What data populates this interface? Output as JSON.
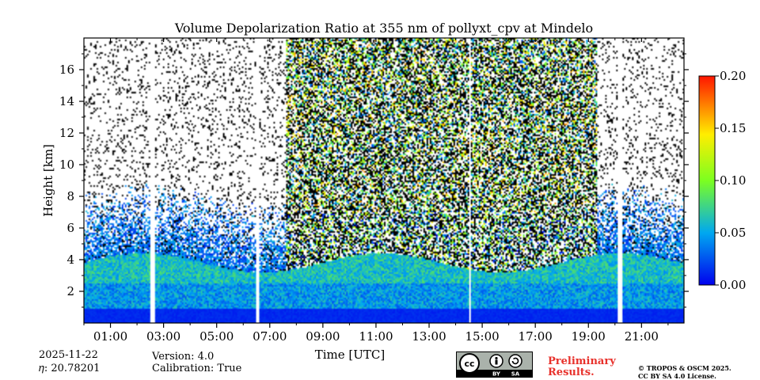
{
  "chart_data": {
    "type": "heatmap",
    "title": "Volume Depolarization Ratio at 355 nm of pollyxt_cpv at Mindelo",
    "xlabel": "Time [UTC]",
    "ylabel": "Height [km]",
    "xlim_hours": [
      0.0,
      22.6
    ],
    "ylim_km": [
      0.0,
      18.0
    ],
    "x_ticks": [
      {
        "label": "01:00",
        "value": 1
      },
      {
        "label": "03:00",
        "value": 3
      },
      {
        "label": "05:00",
        "value": 5
      },
      {
        "label": "07:00",
        "value": 7
      },
      {
        "label": "09:00",
        "value": 9
      },
      {
        "label": "11:00",
        "value": 11
      },
      {
        "label": "13:00",
        "value": 13
      },
      {
        "label": "15:00",
        "value": 15
      },
      {
        "label": "17:00",
        "value": 17
      },
      {
        "label": "19:00",
        "value": 19
      },
      {
        "label": "21:00",
        "value": 21
      }
    ],
    "y_ticks": [
      {
        "label": "2",
        "value": 2
      },
      {
        "label": "4",
        "value": 4
      },
      {
        "label": "6",
        "value": 6
      },
      {
        "label": "8",
        "value": 8
      },
      {
        "label": "10",
        "value": 10
      },
      {
        "label": "12",
        "value": 12
      },
      {
        "label": "14",
        "value": 14
      },
      {
        "label": "16",
        "value": 16
      }
    ],
    "colorbar": {
      "range": [
        0.0,
        0.2
      ],
      "ticks": [
        "0.00",
        "0.05",
        "0.10",
        "0.15",
        "0.20"
      ]
    },
    "features": {
      "boundary_layer_top_km": 3.8,
      "noisy_period_hours": [
        7.6,
        19.3
      ],
      "no_data_gaps_hours": [
        [
          2.5,
          2.7
        ],
        [
          6.5,
          6.6
        ],
        [
          14.5,
          14.55
        ],
        [
          20.1,
          20.3
        ]
      ]
    }
  },
  "footer": {
    "date": "2025-11-22",
    "eta": "𝜂: 20.78201",
    "version": "Version: 4.0",
    "calibration": "Calibration: True",
    "preliminary_1": "Preliminary",
    "preliminary_2": "Results.",
    "copyright_1": "© TROPOS & OSCM 2025.",
    "copyright_2": "CC BY SA 4.0 License.",
    "license_badge": {
      "cc": "cc",
      "by": "BY",
      "sa": "SA"
    }
  },
  "colors": {
    "low": "#0000ff",
    "mid_low": "#00bfff",
    "mid": "#7fff00",
    "mid_high": "#ffff00",
    "high": "#ff0000",
    "prelim": "#e8312b"
  }
}
